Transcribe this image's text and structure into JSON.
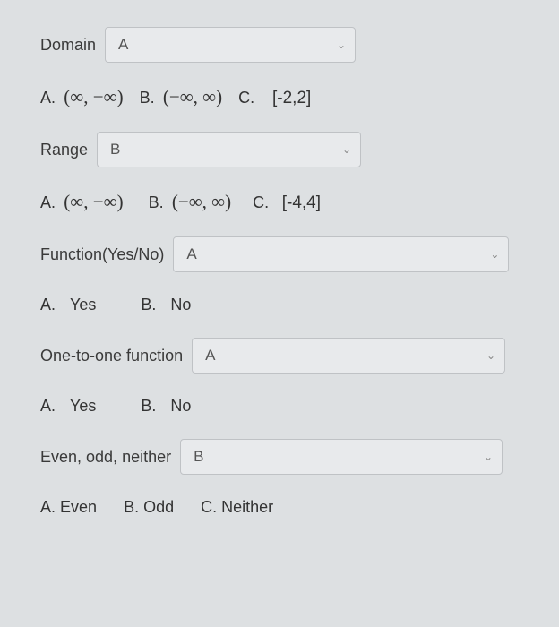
{
  "domain_row": {
    "label": "Domain",
    "select_value": "A",
    "select_width": 280,
    "options": [
      {
        "prefix": "A.",
        "text": "(∞, −∞)",
        "math": true
      },
      {
        "prefix": "B.",
        "text": "(−∞, ∞)",
        "math": true
      },
      {
        "prefix": "C.",
        "text": "[-2,2]",
        "math": false
      }
    ]
  },
  "range_row": {
    "label": "Range",
    "select_value": "B",
    "select_width": 295,
    "options": [
      {
        "prefix": "A.",
        "text": "(∞, −∞)",
        "math": true
      },
      {
        "prefix": "B.",
        "text": "(−∞, ∞)",
        "math": true
      },
      {
        "prefix": "C.",
        "text": "[-4,4]",
        "math": false
      }
    ]
  },
  "function_row": {
    "label": "Function(Yes/No)",
    "select_value": "A",
    "select_width": 375,
    "options": [
      {
        "prefix": "A.",
        "text": "Yes"
      },
      {
        "prefix": "B.",
        "text": "No"
      }
    ]
  },
  "onetoone_row": {
    "label": "One-to-one function",
    "select_value": "A",
    "select_width": 350,
    "options": [
      {
        "prefix": "A.",
        "text": "Yes"
      },
      {
        "prefix": "B.",
        "text": "No"
      }
    ]
  },
  "evenodd_row": {
    "label": "Even, odd, neither",
    "select_value": "B",
    "select_width": 360,
    "options": [
      {
        "prefix": "A.",
        "text": "Even"
      },
      {
        "prefix": "B.",
        "text": "Odd"
      },
      {
        "prefix": "C.",
        "text": "Neither"
      }
    ]
  },
  "colors": {
    "background": "#dde0e2",
    "select_bg": "#e8eaec",
    "select_border": "#bfc2c5",
    "text": "#3a3a3a"
  }
}
